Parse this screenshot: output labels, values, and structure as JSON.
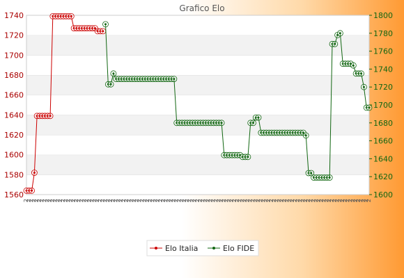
{
  "chart_data": {
    "type": "line",
    "title": "Grafico Elo",
    "left_axis": {
      "ylim": [
        1560,
        1740
      ],
      "ticks": [
        1560,
        1580,
        1600,
        1620,
        1640,
        1660,
        1680,
        1700,
        1720,
        1740
      ]
    },
    "right_axis": {
      "ylim": [
        1600,
        1800
      ],
      "ticks": [
        1600,
        1620,
        1640,
        1660,
        1680,
        1700,
        1720,
        1740,
        1760,
        1780,
        1800
      ]
    },
    "grid": "horizontal-banded",
    "legend_position": "bottom-center",
    "x_tick_label": "2",
    "x": [
      0,
      1,
      2,
      3,
      4,
      5,
      6,
      7,
      8,
      9,
      10,
      11,
      12,
      13,
      14,
      15,
      16,
      17,
      18,
      19,
      20,
      21,
      22,
      23,
      24,
      25,
      26,
      27,
      28,
      29,
      30,
      31,
      32,
      33,
      34,
      35,
      36,
      37,
      38,
      39,
      40,
      41,
      42,
      43,
      44,
      45,
      46,
      47,
      48,
      49,
      50,
      51,
      52,
      53,
      54,
      55,
      56,
      57,
      58,
      59,
      60,
      61,
      62,
      63,
      64,
      65,
      66,
      67,
      68,
      69,
      70,
      71,
      72,
      73,
      74,
      75,
      76,
      77,
      78,
      79,
      80,
      81,
      82,
      83,
      84,
      85,
      86,
      87,
      88,
      89,
      90,
      91,
      92,
      93,
      94,
      95,
      96,
      97,
      98,
      99,
      100,
      101,
      102,
      103,
      104,
      105,
      106,
      107,
      108,
      109,
      110,
      111,
      112,
      113,
      114,
      115
    ],
    "series": [
      {
        "name": "Elo Italia",
        "axis": "left",
        "color": "#cc0000",
        "points": [
          [
            0,
            1564
          ],
          [
            1,
            1564
          ],
          [
            2,
            1564
          ],
          [
            3,
            1582
          ],
          [
            4,
            1639
          ],
          [
            5,
            1639
          ],
          [
            6,
            1639
          ],
          [
            7,
            1639
          ],
          [
            8,
            1639
          ],
          [
            9,
            1639
          ],
          [
            10,
            1739
          ],
          [
            11,
            1739
          ],
          [
            12,
            1739
          ],
          [
            13,
            1739
          ],
          [
            14,
            1739
          ],
          [
            15,
            1739
          ],
          [
            16,
            1739
          ],
          [
            17,
            1739
          ],
          [
            18,
            1727
          ],
          [
            19,
            1727
          ],
          [
            20,
            1727
          ],
          [
            21,
            1727
          ],
          [
            22,
            1727
          ],
          [
            23,
            1727
          ],
          [
            24,
            1727
          ],
          [
            25,
            1727
          ],
          [
            26,
            1727
          ],
          [
            27,
            1724
          ],
          [
            28,
            1724
          ],
          [
            29,
            1724
          ]
        ]
      },
      {
        "name": "Elo FIDE",
        "axis": "right",
        "color": "#116611",
        "points": [
          [
            30,
            1790
          ],
          [
            31,
            1723
          ],
          [
            32,
            1723
          ],
          [
            33,
            1735
          ],
          [
            34,
            1729
          ],
          [
            35,
            1729
          ],
          [
            36,
            1729
          ],
          [
            37,
            1729
          ],
          [
            38,
            1729
          ],
          [
            39,
            1729
          ],
          [
            40,
            1729
          ],
          [
            41,
            1729
          ],
          [
            42,
            1729
          ],
          [
            43,
            1729
          ],
          [
            44,
            1729
          ],
          [
            45,
            1729
          ],
          [
            46,
            1729
          ],
          [
            47,
            1729
          ],
          [
            48,
            1729
          ],
          [
            49,
            1729
          ],
          [
            50,
            1729
          ],
          [
            51,
            1729
          ],
          [
            52,
            1729
          ],
          [
            53,
            1729
          ],
          [
            54,
            1729
          ],
          [
            55,
            1729
          ],
          [
            56,
            1729
          ],
          [
            57,
            1680
          ],
          [
            58,
            1680
          ],
          [
            59,
            1680
          ],
          [
            60,
            1680
          ],
          [
            61,
            1680
          ],
          [
            62,
            1680
          ],
          [
            63,
            1680
          ],
          [
            64,
            1680
          ],
          [
            65,
            1680
          ],
          [
            66,
            1680
          ],
          [
            67,
            1680
          ],
          [
            68,
            1680
          ],
          [
            69,
            1680
          ],
          [
            70,
            1680
          ],
          [
            71,
            1680
          ],
          [
            72,
            1680
          ],
          [
            73,
            1680
          ],
          [
            74,
            1680
          ],
          [
            75,
            1644
          ],
          [
            76,
            1644
          ],
          [
            77,
            1644
          ],
          [
            78,
            1644
          ],
          [
            79,
            1644
          ],
          [
            80,
            1644
          ],
          [
            81,
            1644
          ],
          [
            82,
            1642
          ],
          [
            83,
            1642
          ],
          [
            84,
            1642
          ],
          [
            85,
            1680
          ],
          [
            86,
            1680
          ],
          [
            87,
            1686
          ],
          [
            88,
            1686
          ],
          [
            89,
            1669
          ],
          [
            90,
            1669
          ],
          [
            91,
            1669
          ],
          [
            92,
            1669
          ],
          [
            93,
            1669
          ],
          [
            94,
            1669
          ],
          [
            95,
            1669
          ],
          [
            96,
            1669
          ],
          [
            97,
            1669
          ],
          [
            98,
            1669
          ],
          [
            99,
            1669
          ],
          [
            100,
            1669
          ],
          [
            101,
            1669
          ],
          [
            102,
            1669
          ],
          [
            103,
            1669
          ],
          [
            104,
            1669
          ],
          [
            105,
            1669
          ],
          [
            106,
            1666
          ],
          [
            107,
            1624
          ],
          [
            108,
            1624
          ],
          [
            109,
            1619
          ],
          [
            110,
            1619
          ],
          [
            111,
            1619
          ],
          [
            112,
            1619
          ],
          [
            113,
            1619
          ],
          [
            114,
            1619
          ],
          [
            115,
            1619
          ]
        ]
      }
    ],
    "series_continued": {
      "name": "Elo FIDE",
      "points": [
        [
          116,
          1768
        ],
        [
          117,
          1768
        ],
        [
          118,
          1778
        ],
        [
          119,
          1780
        ],
        [
          120,
          1746
        ],
        [
          121,
          1746
        ],
        [
          122,
          1746
        ],
        [
          123,
          1746
        ],
        [
          124,
          1744
        ],
        [
          125,
          1735
        ],
        [
          126,
          1735
        ],
        [
          127,
          1735
        ],
        [
          128,
          1720
        ],
        [
          129,
          1697
        ],
        [
          130,
          1697
        ]
      ]
    }
  }
}
